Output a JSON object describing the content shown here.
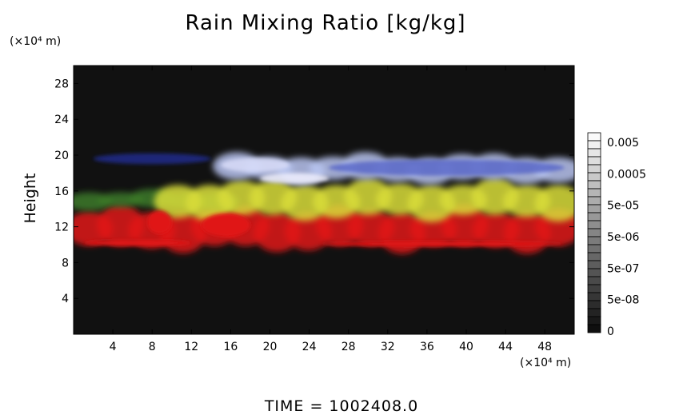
{
  "chart_data": {
    "type": "heatmap",
    "title": "Rain Mixing Ratio [kg/kg]",
    "ylabel": "Height",
    "xlabel": "",
    "x_unit_label": "(×10⁴ m)",
    "y_unit_label": "(×10⁴ m)",
    "xlim": [
      0,
      51
    ],
    "ylim": [
      0,
      30
    ],
    "x_ticks": [
      4,
      8,
      12,
      16,
      20,
      24,
      28,
      32,
      36,
      40,
      44,
      48
    ],
    "y_ticks": [
      4,
      8,
      12,
      16,
      20,
      24,
      28
    ],
    "colorbar": {
      "labels": [
        "0.005",
        "0.0005",
        "5e-05",
        "5e-06",
        "5e-07",
        "5e-08",
        "0"
      ],
      "values": [
        0.005,
        0.0005,
        5e-05,
        5e-06,
        5e-07,
        5e-08,
        0
      ]
    },
    "regions": [
      {
        "name": "blue-white",
        "color": "#b8c4f0",
        "x": [
          15,
          51
        ],
        "y": [
          17,
          20
        ]
      },
      {
        "name": "yellow",
        "color": "#d8dc3a",
        "x": [
          9,
          51
        ],
        "y": [
          13,
          17
        ]
      },
      {
        "name": "green",
        "color": "#3c7a28",
        "x": [
          0,
          16
        ],
        "y": [
          14,
          16
        ]
      },
      {
        "name": "red",
        "color": "#e01818",
        "x": [
          0,
          51
        ],
        "y": [
          9.5,
          14
        ]
      }
    ]
  },
  "time_label": "TIME = 1002408.0"
}
